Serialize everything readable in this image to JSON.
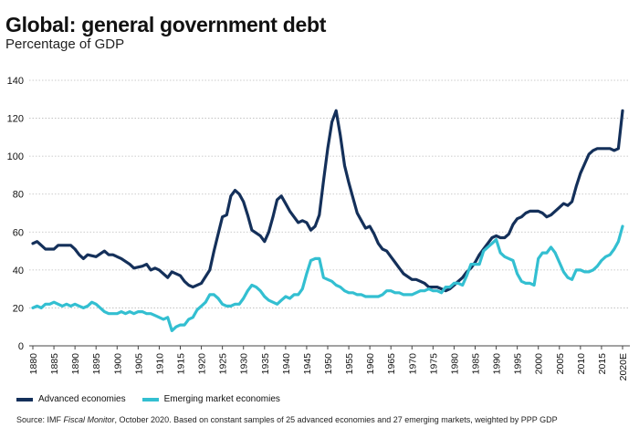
{
  "chart_data": {
    "type": "line",
    "title": "Global: general government debt",
    "subtitle": "Percentage of GDP",
    "ylim": [
      0,
      140
    ],
    "yticks": [
      0,
      20,
      40,
      60,
      80,
      100,
      120,
      140
    ],
    "xlim": [
      1880,
      2020
    ],
    "xtick_labels": [
      "1880",
      "1885",
      "1890",
      "1895",
      "1900",
      "1905",
      "1910",
      "1915",
      "1920",
      "1925",
      "1930",
      "1935",
      "1940",
      "1945",
      "1950",
      "1955",
      "1960",
      "1965",
      "1970",
      "1975",
      "1980",
      "1985",
      "1990",
      "1995",
      "2000",
      "2005",
      "2010",
      "2015",
      "2020E"
    ],
    "grid": true,
    "legend_position": "bottom-left",
    "series": [
      {
        "name": "Advanced economies",
        "color": "#14305a",
        "points": [
          [
            1880,
            54
          ],
          [
            1881,
            55
          ],
          [
            1882,
            53
          ],
          [
            1883,
            51
          ],
          [
            1885,
            51
          ],
          [
            1886,
            53
          ],
          [
            1889,
            53
          ],
          [
            1890,
            51
          ],
          [
            1891,
            48
          ],
          [
            1892,
            46
          ],
          [
            1893,
            48
          ],
          [
            1895,
            47
          ],
          [
            1897,
            50
          ],
          [
            1898,
            48
          ],
          [
            1899,
            48
          ],
          [
            1901,
            46
          ],
          [
            1903,
            43
          ],
          [
            1904,
            41
          ],
          [
            1906,
            42
          ],
          [
            1907,
            43
          ],
          [
            1908,
            40
          ],
          [
            1909,
            41
          ],
          [
            1910,
            40
          ],
          [
            1912,
            36
          ],
          [
            1913,
            39
          ],
          [
            1915,
            37
          ],
          [
            1916,
            34
          ],
          [
            1917,
            32
          ],
          [
            1918,
            31
          ],
          [
            1920,
            33
          ],
          [
            1922,
            40
          ],
          [
            1923,
            50
          ],
          [
            1924,
            59
          ],
          [
            1925,
            68
          ],
          [
            1926,
            69
          ],
          [
            1927,
            79
          ],
          [
            1928,
            82
          ],
          [
            1929,
            80
          ],
          [
            1930,
            76
          ],
          [
            1931,
            69
          ],
          [
            1932,
            61
          ],
          [
            1934,
            58
          ],
          [
            1935,
            55
          ],
          [
            1936,
            60
          ],
          [
            1937,
            68
          ],
          [
            1938,
            77
          ],
          [
            1939,
            79
          ],
          [
            1940,
            75
          ],
          [
            1941,
            71
          ],
          [
            1942,
            68
          ],
          [
            1943,
            65
          ],
          [
            1944,
            66
          ],
          [
            1945,
            65
          ],
          [
            1946,
            61
          ],
          [
            1947,
            63
          ],
          [
            1948,
            69
          ],
          [
            1949,
            87
          ],
          [
            1950,
            104
          ],
          [
            1951,
            118
          ],
          [
            1952,
            124
          ],
          [
            1953,
            111
          ],
          [
            1954,
            95
          ],
          [
            1955,
            86
          ],
          [
            1956,
            78
          ],
          [
            1957,
            70
          ],
          [
            1958,
            66
          ],
          [
            1959,
            62
          ],
          [
            1960,
            63
          ],
          [
            1961,
            59
          ],
          [
            1962,
            54
          ],
          [
            1963,
            51
          ],
          [
            1964,
            50
          ],
          [
            1965,
            47
          ],
          [
            1966,
            44
          ],
          [
            1967,
            41
          ],
          [
            1968,
            38
          ],
          [
            1970,
            35
          ],
          [
            1971,
            35
          ],
          [
            1972,
            34
          ],
          [
            1973,
            33
          ],
          [
            1974,
            31
          ],
          [
            1975,
            31
          ],
          [
            1976,
            31
          ],
          [
            1977,
            30
          ],
          [
            1978,
            29
          ],
          [
            1979,
            30
          ],
          [
            1980,
            32
          ],
          [
            1981,
            34
          ],
          [
            1982,
            36
          ],
          [
            1983,
            39
          ],
          [
            1984,
            41
          ],
          [
            1985,
            44
          ],
          [
            1986,
            48
          ],
          [
            1987,
            51
          ],
          [
            1988,
            54
          ],
          [
            1989,
            57
          ],
          [
            1990,
            58
          ],
          [
            1991,
            57
          ],
          [
            1992,
            57
          ],
          [
            1993,
            59
          ],
          [
            1994,
            64
          ],
          [
            1995,
            67
          ],
          [
            1996,
            68
          ],
          [
            1997,
            70
          ],
          [
            1998,
            71
          ],
          [
            1999,
            71
          ],
          [
            2000,
            71
          ],
          [
            2001,
            70
          ],
          [
            2002,
            68
          ],
          [
            2003,
            69
          ],
          [
            2004,
            71
          ],
          [
            2005,
            73
          ],
          [
            2006,
            75
          ],
          [
            2007,
            74
          ],
          [
            2008,
            76
          ],
          [
            2009,
            84
          ],
          [
            2010,
            91
          ],
          [
            2011,
            96
          ],
          [
            2012,
            101
          ],
          [
            2013,
            103
          ],
          [
            2014,
            104
          ],
          [
            2015,
            104
          ],
          [
            2016,
            104
          ],
          [
            2017,
            104
          ],
          [
            2018,
            103
          ],
          [
            2019,
            104
          ],
          [
            2020,
            124
          ]
        ]
      },
      {
        "name": "Emerging market economies",
        "color": "#33bfd1",
        "points": [
          [
            1880,
            20
          ],
          [
            1881,
            21
          ],
          [
            1882,
            20
          ],
          [
            1883,
            22
          ],
          [
            1884,
            22
          ],
          [
            1885,
            23
          ],
          [
            1886,
            22
          ],
          [
            1887,
            21
          ],
          [
            1888,
            22
          ],
          [
            1889,
            21
          ],
          [
            1890,
            22
          ],
          [
            1891,
            21
          ],
          [
            1892,
            20
          ],
          [
            1893,
            21
          ],
          [
            1894,
            23
          ],
          [
            1895,
            22
          ],
          [
            1896,
            20
          ],
          [
            1897,
            18
          ],
          [
            1898,
            17
          ],
          [
            1899,
            17
          ],
          [
            1900,
            17
          ],
          [
            1901,
            18
          ],
          [
            1902,
            17
          ],
          [
            1903,
            18
          ],
          [
            1904,
            17
          ],
          [
            1905,
            18
          ],
          [
            1906,
            18
          ],
          [
            1907,
            17
          ],
          [
            1908,
            17
          ],
          [
            1909,
            16
          ],
          [
            1910,
            15
          ],
          [
            1911,
            14
          ],
          [
            1912,
            15
          ],
          [
            1913,
            8
          ],
          [
            1914,
            10
          ],
          [
            1915,
            11
          ],
          [
            1916,
            11
          ],
          [
            1917,
            14
          ],
          [
            1918,
            15
          ],
          [
            1919,
            19
          ],
          [
            1920,
            21
          ],
          [
            1921,
            23
          ],
          [
            1922,
            27
          ],
          [
            1923,
            27
          ],
          [
            1924,
            25
          ],
          [
            1925,
            22
          ],
          [
            1926,
            21
          ],
          [
            1927,
            21
          ],
          [
            1928,
            22
          ],
          [
            1929,
            22
          ],
          [
            1930,
            25
          ],
          [
            1931,
            29
          ],
          [
            1932,
            32
          ],
          [
            1933,
            31
          ],
          [
            1934,
            29
          ],
          [
            1935,
            26
          ],
          [
            1936,
            24
          ],
          [
            1937,
            23
          ],
          [
            1938,
            22
          ],
          [
            1939,
            24
          ],
          [
            1940,
            26
          ],
          [
            1941,
            25
          ],
          [
            1942,
            27
          ],
          [
            1943,
            27
          ],
          [
            1944,
            30
          ],
          [
            1945,
            38
          ],
          [
            1946,
            45
          ],
          [
            1947,
            46
          ],
          [
            1948,
            46
          ],
          [
            1949,
            36
          ],
          [
            1950,
            35
          ],
          [
            1951,
            34
          ],
          [
            1952,
            32
          ],
          [
            1953,
            31
          ],
          [
            1954,
            29
          ],
          [
            1955,
            28
          ],
          [
            1956,
            28
          ],
          [
            1957,
            27
          ],
          [
            1958,
            27
          ],
          [
            1959,
            26
          ],
          [
            1960,
            26
          ],
          [
            1961,
            26
          ],
          [
            1962,
            26
          ],
          [
            1963,
            27
          ],
          [
            1964,
            29
          ],
          [
            1965,
            29
          ],
          [
            1966,
            28
          ],
          [
            1967,
            28
          ],
          [
            1968,
            27
          ],
          [
            1969,
            27
          ],
          [
            1970,
            27
          ],
          [
            1971,
            28
          ],
          [
            1972,
            29
          ],
          [
            1973,
            29
          ],
          [
            1974,
            30
          ],
          [
            1975,
            29
          ],
          [
            1976,
            29
          ],
          [
            1977,
            28
          ],
          [
            1978,
            31
          ],
          [
            1979,
            31
          ],
          [
            1980,
            33
          ],
          [
            1981,
            33
          ],
          [
            1982,
            32
          ],
          [
            1983,
            37
          ],
          [
            1984,
            43
          ],
          [
            1985,
            43
          ],
          [
            1986,
            43
          ],
          [
            1987,
            50
          ],
          [
            1988,
            52
          ],
          [
            1989,
            54
          ],
          [
            1990,
            56
          ],
          [
            1991,
            49
          ],
          [
            1992,
            47
          ],
          [
            1993,
            46
          ],
          [
            1994,
            45
          ],
          [
            1995,
            38
          ],
          [
            1996,
            34
          ],
          [
            1997,
            33
          ],
          [
            1998,
            33
          ],
          [
            1999,
            32
          ],
          [
            2000,
            46
          ],
          [
            2001,
            49
          ],
          [
            2002,
            49
          ],
          [
            2003,
            52
          ],
          [
            2004,
            49
          ],
          [
            2005,
            44
          ],
          [
            2006,
            39
          ],
          [
            2007,
            36
          ],
          [
            2008,
            35
          ],
          [
            2009,
            40
          ],
          [
            2010,
            40
          ],
          [
            2011,
            39
          ],
          [
            2012,
            39
          ],
          [
            2013,
            40
          ],
          [
            2014,
            42
          ],
          [
            2015,
            45
          ],
          [
            2016,
            47
          ],
          [
            2017,
            48
          ],
          [
            2018,
            51
          ],
          [
            2019,
            55
          ],
          [
            2020,
            63
          ]
        ]
      }
    ]
  },
  "legend": {
    "advanced_label": "Advanced economies",
    "emerging_label": "Emerging market economies"
  },
  "source": {
    "prefix": "Source: IMF ",
    "italic": "Fiscal Monitor",
    "suffix": ", October 2020. Based on constant samples of 25 advanced economies and 27 emerging markets, weighted by PPP GDP"
  }
}
